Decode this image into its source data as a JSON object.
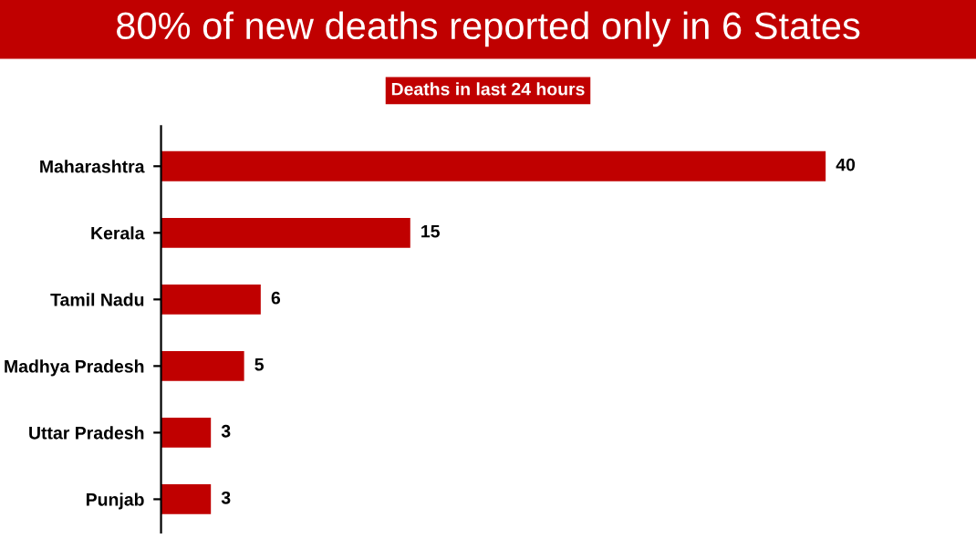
{
  "chart_data": {
    "type": "bar",
    "orientation": "horizontal",
    "title": "80% of new deaths reported only in 6 States",
    "subtitle": "Deaths in last 24 hours",
    "categories": [
      "Maharashtra",
      "Kerala",
      "Tamil Nadu",
      "Madhya Pradesh",
      "Uttar Pradesh",
      "Punjab"
    ],
    "values": [
      40,
      15,
      6,
      5,
      3,
      3
    ],
    "color": "#c00000",
    "data_labels": true,
    "tick_labels": "y",
    "grid": false,
    "legend": false
  }
}
